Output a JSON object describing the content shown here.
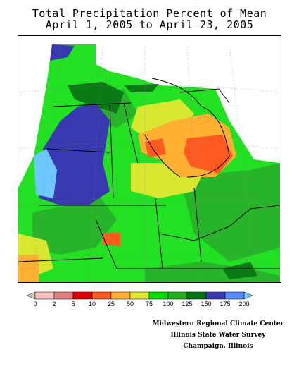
{
  "title": {
    "line1": "Total Precipitation Percent of Mean",
    "line2": "April 1, 2005 to April 23, 2005"
  },
  "legend": {
    "ticks": [
      "0",
      "2",
      "5",
      "10",
      "25",
      "50",
      "75",
      "100",
      "125",
      "150",
      "175",
      "200"
    ],
    "colors": [
      "#c8c8c8",
      "#ffc0c0",
      "#e08080",
      "#e00000",
      "#ff5a20",
      "#ffb030",
      "#e0e830",
      "#00e000",
      "#20b020",
      "#007010",
      "#3838b0",
      "#5a8cff",
      "#6ec8ff"
    ]
  },
  "credits": {
    "line1": "Midwestern Regional Climate Center",
    "line2": "Illinois State Water Survey",
    "line3": "Champaign, Illinois"
  },
  "map_colors": {
    "green": "#22e022",
    "mid_green": "#28b428",
    "dark_green": "#0a7a14",
    "yellow_green": "#d8e830",
    "orange": "#ffb030",
    "red_orange": "#ff5a20",
    "dark_blue": "#3838b0",
    "light_blue": "#6ec8ff"
  }
}
